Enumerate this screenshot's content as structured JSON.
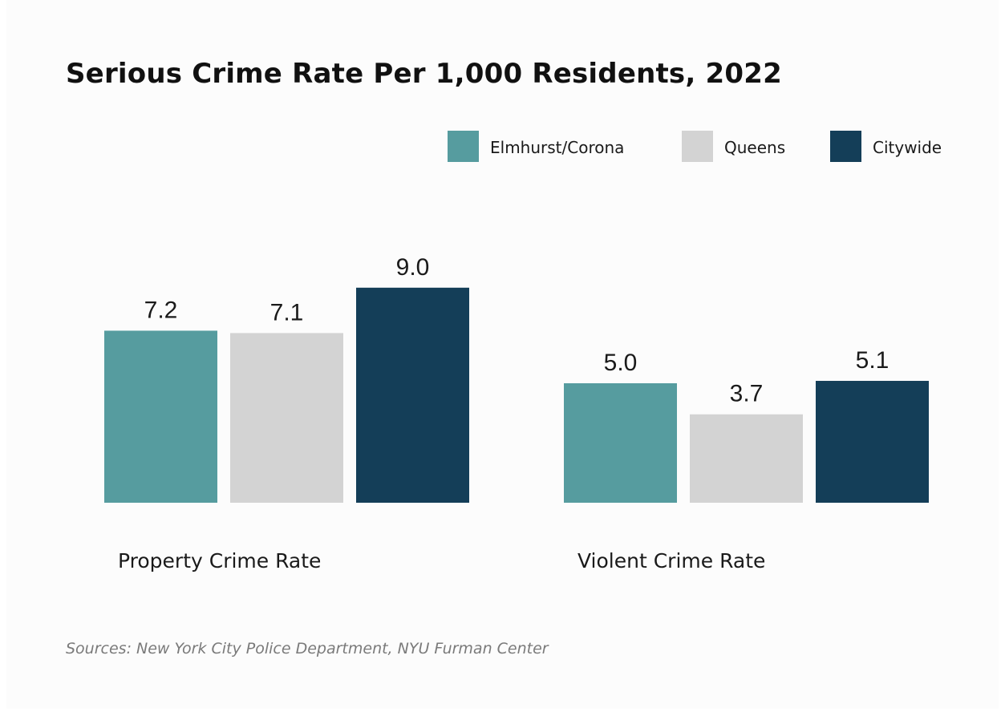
{
  "chart_data": {
    "type": "bar",
    "title": "Serious Crime Rate Per 1,000 Residents, 2022",
    "categories": [
      "Property Crime Rate",
      "Violent Crime Rate"
    ],
    "series": [
      {
        "name": "Elmhurst/Corona",
        "color": "#569c9f",
        "values": [
          7.2,
          5.0
        ]
      },
      {
        "name": "Queens",
        "color": "#d3d3d3",
        "values": [
          7.1,
          3.7
        ]
      },
      {
        "name": "Citywide",
        "color": "#143e58",
        "values": [
          9.0,
          5.1
        ]
      }
    ],
    "value_labels": [
      [
        "7.2",
        "5.0"
      ],
      [
        "7.1",
        "3.7"
      ],
      [
        "9.0",
        "5.1"
      ]
    ],
    "ylim": [
      0,
      10
    ],
    "grid": false,
    "legend": "top-right"
  },
  "source": "Sources: New York City Police Department, NYU Furman Center"
}
